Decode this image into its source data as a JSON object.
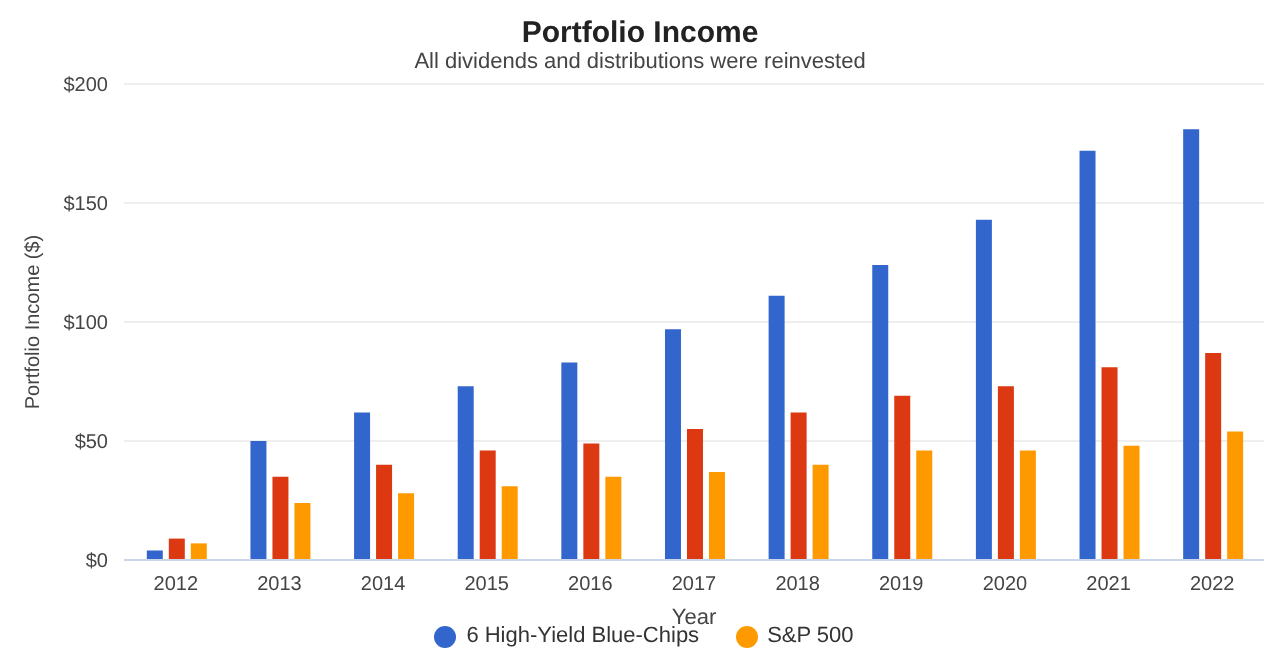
{
  "chart_data": {
    "type": "bar",
    "title": "Portfolio Income",
    "subtitle": "All dividends and distributions were reinvested",
    "xlabel": "Year",
    "ylabel": "Portfolio Income ($)",
    "categories": [
      "2012",
      "2013",
      "2014",
      "2015",
      "2016",
      "2017",
      "2018",
      "2019",
      "2020",
      "2021",
      "2022"
    ],
    "series": [
      {
        "name": "6 High-Yield Blue-Chips",
        "color": "#3366cc",
        "values": [
          4,
          50,
          62,
          73,
          83,
          97,
          111,
          124,
          143,
          172,
          181
        ]
      },
      {
        "color": "#dc3912",
        "values": [
          9,
          35,
          40,
          46,
          49,
          55,
          62,
          69,
          73,
          81,
          87
        ]
      },
      {
        "name": "S&P 500",
        "color": "#ff9900",
        "values": [
          7,
          24,
          28,
          31,
          35,
          37,
          40,
          46,
          46,
          48,
          54
        ]
      }
    ],
    "ylim": [
      0,
      200
    ],
    "yticks": [
      {
        "value": 0,
        "label": "$0"
      },
      {
        "value": 50,
        "label": "$50"
      },
      {
        "value": 100,
        "label": "$100"
      },
      {
        "value": 150,
        "label": "$150"
      },
      {
        "value": 200,
        "label": "$200"
      }
    ],
    "grid": "y",
    "legend": "bottom"
  }
}
